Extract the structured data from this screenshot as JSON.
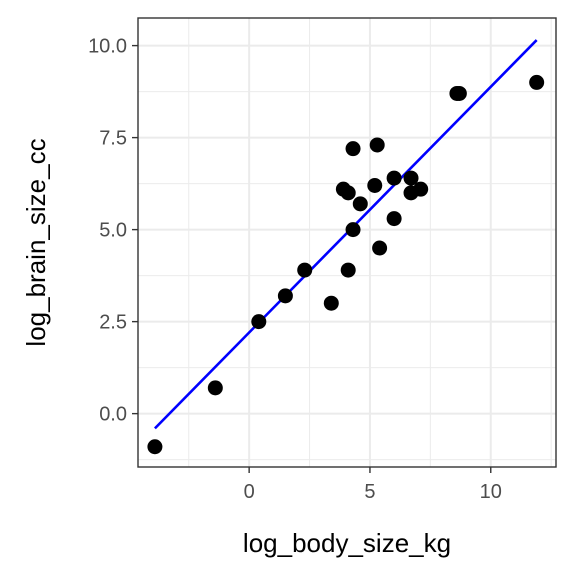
{
  "chart_data": {
    "type": "scatter",
    "xlabel": "log_body_size_kg",
    "ylabel": "log_brain_size_cc",
    "xlim": [
      -4.6,
      12.7
    ],
    "ylim": [
      -1.45,
      10.75
    ],
    "x_ticks": [
      0,
      5,
      10
    ],
    "x_tick_labels": [
      "0",
      "5",
      "10"
    ],
    "y_ticks": [
      0,
      2.5,
      5,
      7.5,
      10
    ],
    "y_tick_labels": [
      "0.0",
      "2.5",
      "5.0",
      "7.5",
      "10.0"
    ],
    "grid": true,
    "legend": "none",
    "points": [
      {
        "x": -3.9,
        "y": -0.9
      },
      {
        "x": -1.4,
        "y": 0.7
      },
      {
        "x": 0.4,
        "y": 2.5
      },
      {
        "x": 1.5,
        "y": 3.2
      },
      {
        "x": 2.3,
        "y": 3.9
      },
      {
        "x": 3.4,
        "y": 3.0
      },
      {
        "x": 3.9,
        "y": 6.1
      },
      {
        "x": 4.1,
        "y": 3.9
      },
      {
        "x": 4.1,
        "y": 6.0
      },
      {
        "x": 4.3,
        "y": 5.0
      },
      {
        "x": 4.3,
        "y": 7.2
      },
      {
        "x": 4.6,
        "y": 5.7
      },
      {
        "x": 5.2,
        "y": 6.2
      },
      {
        "x": 5.3,
        "y": 7.3
      },
      {
        "x": 5.4,
        "y": 4.5
      },
      {
        "x": 6.0,
        "y": 6.4
      },
      {
        "x": 6.0,
        "y": 5.3
      },
      {
        "x": 6.7,
        "y": 6.0
      },
      {
        "x": 6.7,
        "y": 6.4
      },
      {
        "x": 7.1,
        "y": 6.1
      },
      {
        "x": 8.6,
        "y": 8.7
      },
      {
        "x": 8.7,
        "y": 8.7
      },
      {
        "x": 11.9,
        "y": 9.0
      }
    ],
    "fit_line": {
      "x": [
        -3.9,
        11.9
      ],
      "y": [
        -0.4,
        10.15
      ]
    },
    "colors": {
      "points": "#000000",
      "fit_line": "#0000ff",
      "grid": "#ebebeb",
      "panel_border": "#333333"
    }
  }
}
